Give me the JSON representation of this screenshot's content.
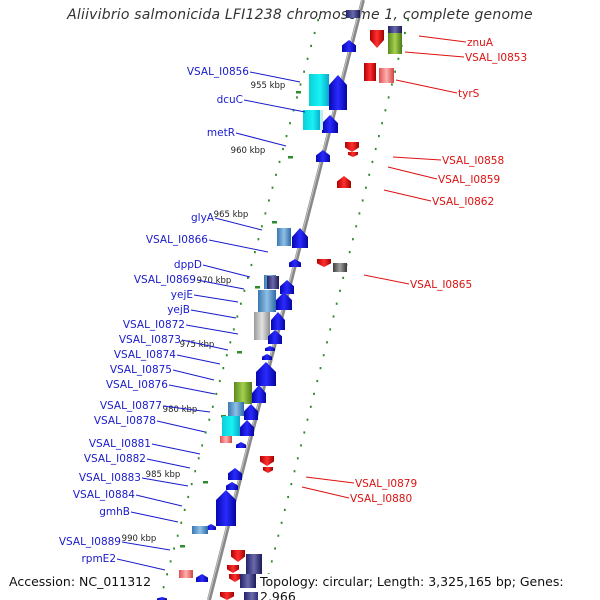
{
  "title": "Aliivibrio salmonicida LFI1238 chromosome 1, complete genome",
  "accession": "Accession: NC_011312",
  "summary": "Topology: circular; Length: 3,325,165 bp; Genes: 2,966",
  "colors": {
    "backbone": "#8a8a8a",
    "tick": "#2e8b2e",
    "kbp_tick": "#2e8b2e",
    "left_label": "#1a1acc",
    "right_label": "#dd1111",
    "forward_cds": "#1515e6",
    "reverse_cds": "#e01010"
  },
  "kbp_ticks": [
    "955 kbp",
    "960 kbp",
    "965 kbp",
    "970 kbp",
    "975 kbp",
    "980 kbp",
    "985 kbp",
    "990 kbp"
  ],
  "left_labels": [
    "VSAL_I0856",
    "dcuC",
    "metR",
    "glyA",
    "VSAL_I0866",
    "dppD",
    "VSAL_I0869",
    "yejE",
    "yejB",
    "VSAL_I0872",
    "VSAL_I0873",
    "VSAL_I0874",
    "VSAL_I0875",
    "VSAL_I0876",
    "VSAL_I0877",
    "VSAL_I0878",
    "VSAL_I0881",
    "VSAL_I0882",
    "VSAL_I0883",
    "VSAL_I0884",
    "gmhB",
    "VSAL_I0889",
    "rpmE2"
  ],
  "right_labels": [
    "znuA",
    "VSAL_I0853",
    "tyrS",
    "VSAL_I0858",
    "VSAL_I0859",
    "VSAL_I0862",
    "VSAL_I0865",
    "VSAL_I0879",
    "VSAL_I0880"
  ]
}
